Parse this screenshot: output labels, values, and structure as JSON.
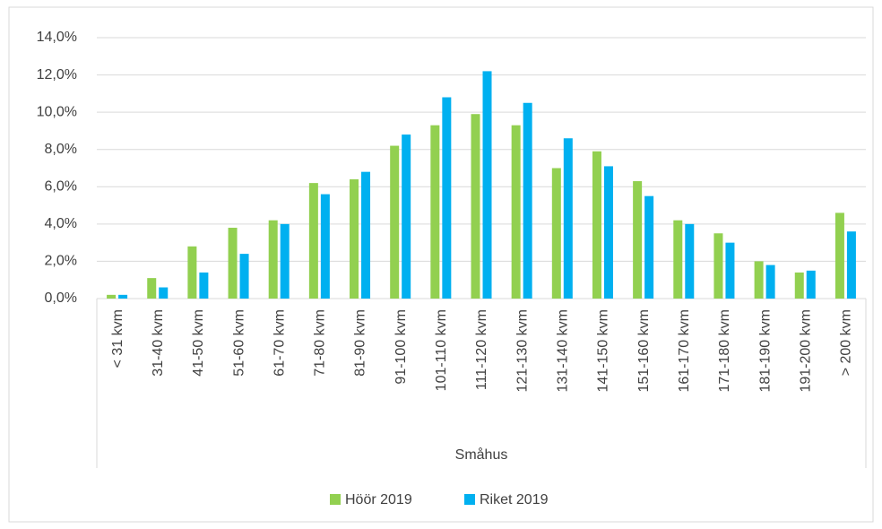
{
  "chart_data": {
    "type": "bar",
    "x_label": "Småhus",
    "categories": [
      "< 31 kvm",
      "31-40 kvm",
      "41-50 kvm",
      "51-60 kvm",
      "61-70 kvm",
      "71-80 kvm",
      "81-90 kvm",
      "91-100 kvm",
      "101-110 kvm",
      "111-120 kvm",
      "121-130 kvm",
      "131-140 kvm",
      "141-150 kvm",
      "151-160 kvm",
      "161-170 kvm",
      "171-180 kvm",
      "181-190 kvm",
      "191-200 kvm",
      "> 200 kvm"
    ],
    "series": [
      {
        "name": "Höör 2019",
        "color": "#92d050",
        "values": [
          0.2,
          1.1,
          2.8,
          3.8,
          4.2,
          6.2,
          6.4,
          8.2,
          9.3,
          9.9,
          9.3,
          7.0,
          7.9,
          6.3,
          4.2,
          3.5,
          2.0,
          1.4,
          4.6
        ]
      },
      {
        "name": "Riket 2019",
        "color": "#00b0f0",
        "values": [
          0.2,
          0.6,
          1.4,
          2.4,
          4.0,
          5.6,
          6.8,
          8.8,
          10.8,
          12.2,
          10.5,
          8.6,
          7.1,
          5.5,
          4.0,
          3.0,
          1.8,
          1.5,
          3.6
        ]
      }
    ],
    "ylim": [
      0,
      14
    ],
    "yticks": [
      {
        "value": 0,
        "label": "0,0%"
      },
      {
        "value": 2,
        "label": "2,0%"
      },
      {
        "value": 4,
        "label": "4,0%"
      },
      {
        "value": 6,
        "label": "6,0%"
      },
      {
        "value": 8,
        "label": "8,0%"
      },
      {
        "value": 10,
        "label": "10,0%"
      },
      {
        "value": 12,
        "label": "12,0%"
      },
      {
        "value": 14,
        "label": "14,0%"
      }
    ],
    "grid": true,
    "legend": "bottom"
  }
}
